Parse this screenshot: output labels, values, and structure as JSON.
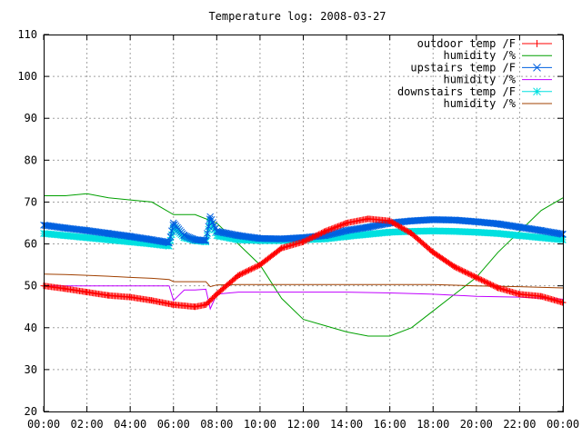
{
  "chart_data": {
    "type": "line",
    "title": "Temperature log: 2008-03-27",
    "xlabel": "",
    "ylabel": "",
    "xlim": [
      0,
      24
    ],
    "ylim": [
      20,
      110
    ],
    "x_ticks": [
      "00:00",
      "02:00",
      "04:00",
      "06:00",
      "08:00",
      "10:00",
      "12:00",
      "14:00",
      "16:00",
      "18:00",
      "20:00",
      "22:00",
      "00:00"
    ],
    "y_ticks": [
      20,
      30,
      40,
      50,
      60,
      70,
      80,
      90,
      100,
      110
    ],
    "grid": true,
    "legend_position": "top-right",
    "series": [
      {
        "name": "outdoor temp /F",
        "color": "#ff0000",
        "marker": "plus",
        "x": [
          0,
          1,
          2,
          3,
          4,
          5,
          6,
          7,
          7.5,
          8,
          9,
          10,
          11,
          12,
          13,
          14,
          15,
          16,
          17,
          18,
          19,
          20,
          21,
          22,
          23,
          24
        ],
        "y": [
          50,
          49.3,
          48.5,
          47.7,
          47.3,
          46.5,
          45.5,
          45,
          45.5,
          48,
          52.5,
          55,
          59,
          60.5,
          63,
          65,
          66,
          65.5,
          62.5,
          58,
          54.5,
          52,
          49.5,
          48,
          47.5,
          46
        ]
      },
      {
        "name": "humidity /%",
        "color": "#00a000",
        "marker": "none",
        "x": [
          0,
          1,
          2,
          3,
          4,
          5,
          6,
          7,
          8,
          9,
          10,
          11,
          12,
          13,
          14,
          15,
          16,
          17,
          18,
          19,
          20,
          21,
          22,
          23,
          24
        ],
        "y": [
          71.5,
          71.5,
          72,
          71,
          70.5,
          70,
          67,
          67,
          65,
          60,
          55,
          47,
          42,
          40.5,
          39,
          38,
          38,
          40,
          44,
          48,
          52,
          58,
          63,
          68,
          71
        ]
      },
      {
        "name": "upstairs temp /F",
        "color": "#0060e0",
        "marker": "x",
        "x": [
          0,
          1,
          2,
          3,
          4,
          5,
          5.8,
          6,
          6.5,
          7,
          7.5,
          7.7,
          8,
          9,
          10,
          11,
          12,
          13,
          14,
          15,
          16,
          17,
          18,
          19,
          20,
          21,
          22,
          23,
          24
        ],
        "y": [
          64.5,
          63.8,
          63.2,
          62.5,
          61.8,
          61,
          60.3,
          65,
          62,
          61,
          60.8,
          66.5,
          63,
          62,
          61.3,
          61.2,
          61.5,
          62,
          63.2,
          64,
          65,
          65.5,
          65.8,
          65.7,
          65.3,
          64.8,
          64,
          63.2,
          62.3
        ]
      },
      {
        "name": "humidity /%",
        "color": "#c000ff",
        "marker": "none",
        "x": [
          0,
          2,
          4,
          5.5,
          5.8,
          6,
          6.5,
          7,
          7.5,
          7.7,
          8,
          9,
          10,
          12,
          14,
          16,
          18,
          20,
          22,
          24
        ],
        "y": [
          50,
          50,
          50,
          50,
          50,
          46.5,
          49,
          49,
          49.2,
          44.5,
          48,
          48.5,
          48.5,
          48.5,
          48.5,
          48.3,
          48,
          47.5,
          47.3,
          46.8
        ]
      },
      {
        "name": "downstairs temp /F",
        "color": "#00e0e0",
        "marker": "star",
        "x": [
          0,
          1,
          2,
          3,
          4,
          5,
          5.8,
          6,
          6.5,
          7,
          7.5,
          7.7,
          8,
          9,
          10,
          11,
          12,
          13,
          14,
          15,
          16,
          17,
          18,
          19,
          20,
          21,
          22,
          23,
          24
        ],
        "y": [
          62.5,
          62,
          61.5,
          61,
          60.5,
          60,
          59.5,
          64,
          61.5,
          60.8,
          60.5,
          65.5,
          62,
          61,
          60.8,
          60.8,
          61,
          61.2,
          61.8,
          62.3,
          62.8,
          63,
          63.1,
          63,
          62.8,
          62.5,
          62,
          61.5,
          61
        ]
      },
      {
        "name": "humidity /%",
        "color": "#a04000",
        "marker": "none",
        "x": [
          0,
          1,
          2,
          3,
          4,
          5,
          5.8,
          6,
          7,
          7.5,
          7.7,
          8,
          9,
          10,
          12,
          14,
          16,
          18,
          20,
          22,
          24
        ],
        "y": [
          52.8,
          52.7,
          52.5,
          52.3,
          52,
          51.8,
          51.5,
          51,
          51,
          51,
          49.8,
          50.2,
          50.3,
          50.3,
          50.3,
          50.3,
          50.3,
          50.3,
          50,
          49.8,
          49.5
        ]
      }
    ]
  }
}
